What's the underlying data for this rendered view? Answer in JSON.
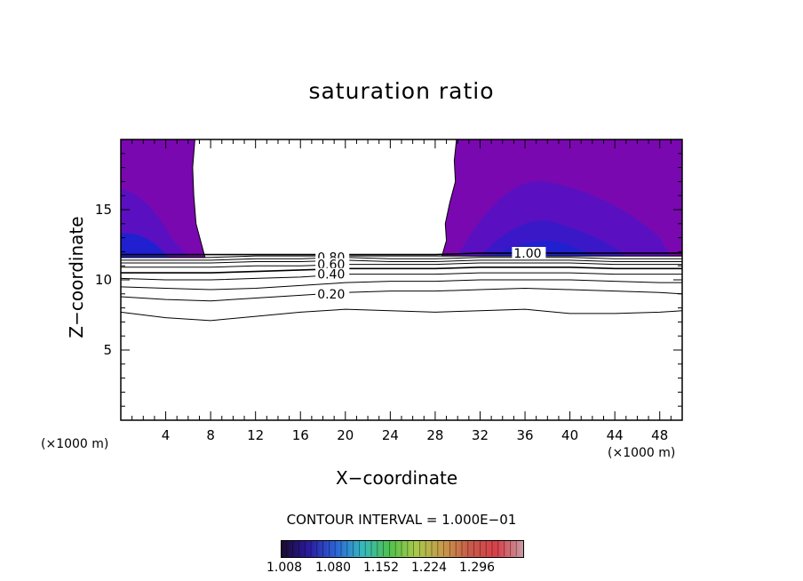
{
  "title": "saturation ratio",
  "xlabel": "X−coordinate",
  "ylabel": "Z−coordinate",
  "x_unit_left": "(×1000 m)",
  "x_unit_right": "(×1000 m)",
  "contour_interval": "CONTOUR INTERVAL = 1.000E−01",
  "colorbar_labels": [
    "1.008",
    "1.080",
    "1.152",
    "1.224",
    "1.296"
  ],
  "chart_data": {
    "type": "contour",
    "title": "saturation ratio",
    "xlabel": "X−coordinate",
    "ylabel": "Z−coordinate",
    "xlim": [
      0,
      50
    ],
    "ylim": [
      0,
      20
    ],
    "x_ticks": [
      4,
      8,
      12,
      16,
      20,
      24,
      28,
      32,
      36,
      40,
      44,
      48
    ],
    "y_ticks": [
      5,
      10,
      15
    ],
    "contour_levels_labeled": [
      "0.20",
      "0.40",
      "0.60",
      "0.80",
      "1.00"
    ],
    "contour_interval": 0.1,
    "filled_regions": [
      {
        "x_range": [
          0,
          7.5
        ],
        "z_range": [
          11.5,
          20
        ],
        "description_value_min": 1.008
      },
      {
        "x_range": [
          28.5,
          50
        ],
        "z_range": [
          11.7,
          20
        ],
        "description_value_min": 1.008
      }
    ],
    "contour_lines": [
      {
        "level": 0.1,
        "x": [
          0,
          4,
          8,
          12,
          16,
          20,
          24,
          28,
          32,
          36,
          40,
          44,
          48,
          50
        ],
        "z": [
          7.7,
          7.3,
          7.1,
          7.4,
          7.7,
          7.9,
          7.8,
          7.7,
          7.8,
          7.9,
          7.6,
          7.6,
          7.7,
          7.8
        ]
      },
      {
        "level": 0.2,
        "x": [
          0,
          4,
          8,
          12,
          16,
          20,
          24,
          28,
          32,
          36,
          40,
          44,
          48,
          50
        ],
        "z": [
          8.8,
          8.6,
          8.5,
          8.7,
          8.9,
          9.1,
          9.2,
          9.2,
          9.3,
          9.4,
          9.3,
          9.2,
          9.1,
          9.0
        ]
      },
      {
        "level": 0.3,
        "x": [
          0,
          4,
          8,
          12,
          16,
          20,
          24,
          28,
          32,
          36,
          40,
          44,
          48,
          50
        ],
        "z": [
          9.5,
          9.4,
          9.3,
          9.4,
          9.6,
          9.8,
          9.9,
          9.9,
          10.0,
          10.0,
          10.0,
          9.9,
          9.8,
          9.8
        ]
      },
      {
        "level": 0.4,
        "x": [
          0,
          4,
          8,
          12,
          16,
          20,
          24,
          28,
          32,
          36,
          40,
          44,
          48,
          50
        ],
        "z": [
          10.1,
          10.0,
          10.0,
          10.1,
          10.2,
          10.4,
          10.4,
          10.4,
          10.5,
          10.5,
          10.5,
          10.4,
          10.4,
          10.4
        ]
      },
      {
        "level": 0.5,
        "x": [
          0,
          4,
          8,
          12,
          16,
          20,
          24,
          28,
          32,
          36,
          40,
          44,
          48,
          50
        ],
        "z": [
          10.5,
          10.5,
          10.5,
          10.6,
          10.7,
          10.8,
          10.8,
          10.8,
          10.9,
          10.9,
          10.9,
          10.8,
          10.8,
          10.8
        ]
      },
      {
        "level": 0.6,
        "x": [
          0,
          4,
          8,
          12,
          16,
          20,
          24,
          28,
          32,
          36,
          40,
          44,
          48,
          50
        ],
        "z": [
          10.9,
          10.9,
          10.9,
          11.0,
          11.0,
          11.1,
          11.1,
          11.1,
          11.2,
          11.2,
          11.2,
          11.1,
          11.1,
          11.1
        ]
      },
      {
        "level": 0.7,
        "x": [
          0,
          4,
          8,
          12,
          16,
          20,
          24,
          28,
          32,
          36,
          40,
          44,
          48,
          50
        ],
        "z": [
          11.2,
          11.2,
          11.2,
          11.3,
          11.3,
          11.4,
          11.3,
          11.3,
          11.4,
          11.4,
          11.4,
          11.3,
          11.3,
          11.3
        ]
      },
      {
        "level": 0.8,
        "x": [
          0,
          4,
          8,
          12,
          16,
          20,
          24,
          28,
          32,
          36,
          40,
          44,
          48,
          50
        ],
        "z": [
          11.4,
          11.4,
          11.4,
          11.5,
          11.5,
          11.6,
          11.5,
          11.5,
          11.6,
          11.6,
          11.6,
          11.5,
          11.5,
          11.5
        ]
      },
      {
        "level": 0.9,
        "x": [
          0,
          4,
          8,
          12,
          16,
          20,
          24,
          28,
          32,
          36,
          40,
          44,
          48,
          50
        ],
        "z": [
          11.6,
          11.6,
          11.6,
          11.7,
          11.7,
          11.7,
          11.7,
          11.7,
          11.7,
          11.7,
          11.7,
          11.7,
          11.7,
          11.7
        ]
      },
      {
        "level": 1.0,
        "x": [
          0,
          4,
          8,
          12,
          16,
          20,
          24,
          28,
          32,
          36,
          40,
          44,
          48,
          50
        ],
        "z": [
          11.8,
          11.8,
          11.8,
          11.8,
          11.8,
          11.8,
          11.8,
          11.8,
          11.9,
          11.9,
          11.9,
          11.9,
          11.9,
          11.9
        ]
      }
    ],
    "contour_label_positions": [
      {
        "text": "0.80",
        "x": 17.5,
        "z": 11.6
      },
      {
        "text": "0.60",
        "x": 17.5,
        "z": 11.1
      },
      {
        "text": "0.40",
        "x": 17.5,
        "z": 10.4
      },
      {
        "text": "0.20",
        "x": 17.5,
        "z": 9.0
      },
      {
        "text": "1.00",
        "x": 35.0,
        "z": 11.9
      }
    ],
    "colorbar": {
      "min": 1.008,
      "max": 1.368,
      "labels": [
        "1.008",
        "1.080",
        "1.152",
        "1.224",
        "1.296"
      ]
    },
    "colors": {
      "fill_base": "#7a08b0",
      "fill_mid": "#5a10c0",
      "fill_deep": "#2020d0",
      "line": "#000000"
    }
  }
}
